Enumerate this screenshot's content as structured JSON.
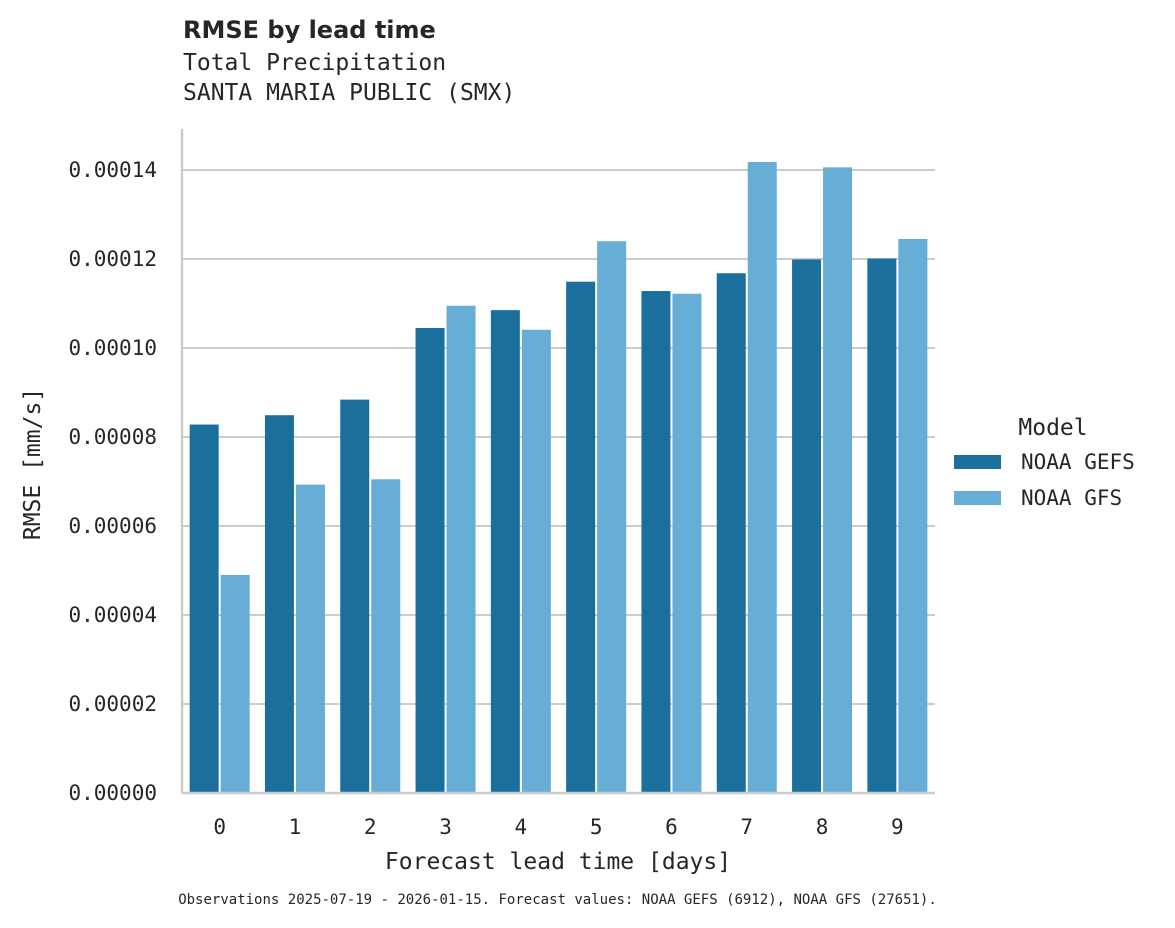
{
  "header": {
    "title": "RMSE by lead time",
    "subtitle_line1": "Total Precipitation",
    "subtitle_line2": "SANTA MARIA PUBLIC (SMX)"
  },
  "footer": {
    "note": "Observations 2025-07-19 - 2026-01-15. Forecast values: NOAA GEFS (6912), NOAA GFS (27651)."
  },
  "legend": {
    "title": "Model",
    "items": [
      {
        "label": "NOAA GEFS",
        "color": "#1a6f9d"
      },
      {
        "label": "NOAA GFS",
        "color": "#67aed6"
      }
    ]
  },
  "chart_data": {
    "type": "bar",
    "title": "RMSE by lead time",
    "subtitle": "Total Precipitation / SANTA MARIA PUBLIC (SMX)",
    "xlabel": "Forecast lead time [days]",
    "ylabel": "RMSE [mm/s]",
    "categories": [
      "0",
      "1",
      "2",
      "3",
      "4",
      "5",
      "6",
      "7",
      "8",
      "9"
    ],
    "series": [
      {
        "name": "NOAA GEFS",
        "color": "#1a6f9d",
        "values": [
          8.28e-05,
          8.49e-05,
          8.84e-05,
          0.0001045,
          0.0001085,
          0.0001149,
          0.0001128,
          0.0001168,
          0.0001199,
          0.0001201
        ]
      },
      {
        "name": "NOAA GFS",
        "color": "#67aed6",
        "values": [
          4.9e-05,
          6.93e-05,
          7.05e-05,
          0.0001095,
          0.0001041,
          0.000124,
          0.0001122,
          0.0001418,
          0.0001406,
          0.0001245
        ]
      }
    ],
    "yticks": [
      "0.00000",
      "0.00002",
      "0.00004",
      "0.00006",
      "0.00008",
      "0.00010",
      "0.00012",
      "0.00014"
    ],
    "ylim": [
      0,
      0.000149
    ],
    "grid": "horizontal",
    "legend_position": "right"
  }
}
